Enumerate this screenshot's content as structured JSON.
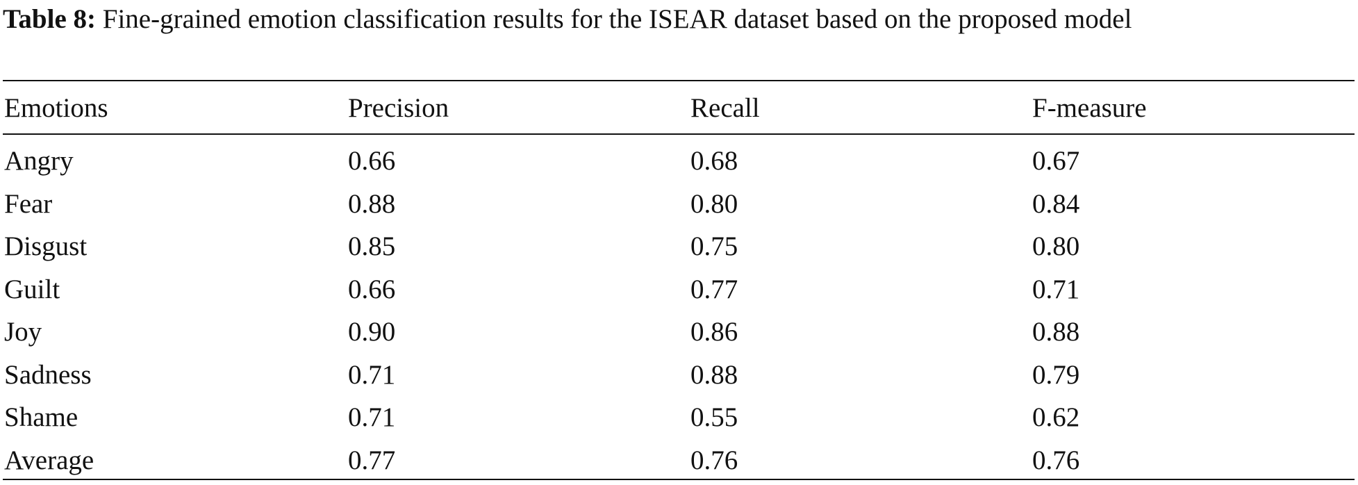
{
  "caption": {
    "label": "Table 8:",
    "text": "Fine-grained emotion classification results for the ISEAR dataset based on the proposed model"
  },
  "table": {
    "header": [
      "Emotions",
      "Precision",
      "Recall",
      "F-measure"
    ],
    "rows": [
      [
        "Angry",
        "0.66",
        "0.68",
        "0.67"
      ],
      [
        "Fear",
        "0.88",
        "0.80",
        "0.84"
      ],
      [
        "Disgust",
        "0.85",
        "0.75",
        "0.80"
      ],
      [
        "Guilt",
        "0.66",
        "0.77",
        "0.71"
      ],
      [
        "Joy",
        "0.90",
        "0.86",
        "0.88"
      ],
      [
        "Sadness",
        "0.71",
        "0.88",
        "0.79"
      ],
      [
        "Shame",
        "0.71",
        "0.55",
        "0.62"
      ],
      [
        "Average",
        "0.77",
        "0.76",
        "0.76"
      ]
    ]
  }
}
